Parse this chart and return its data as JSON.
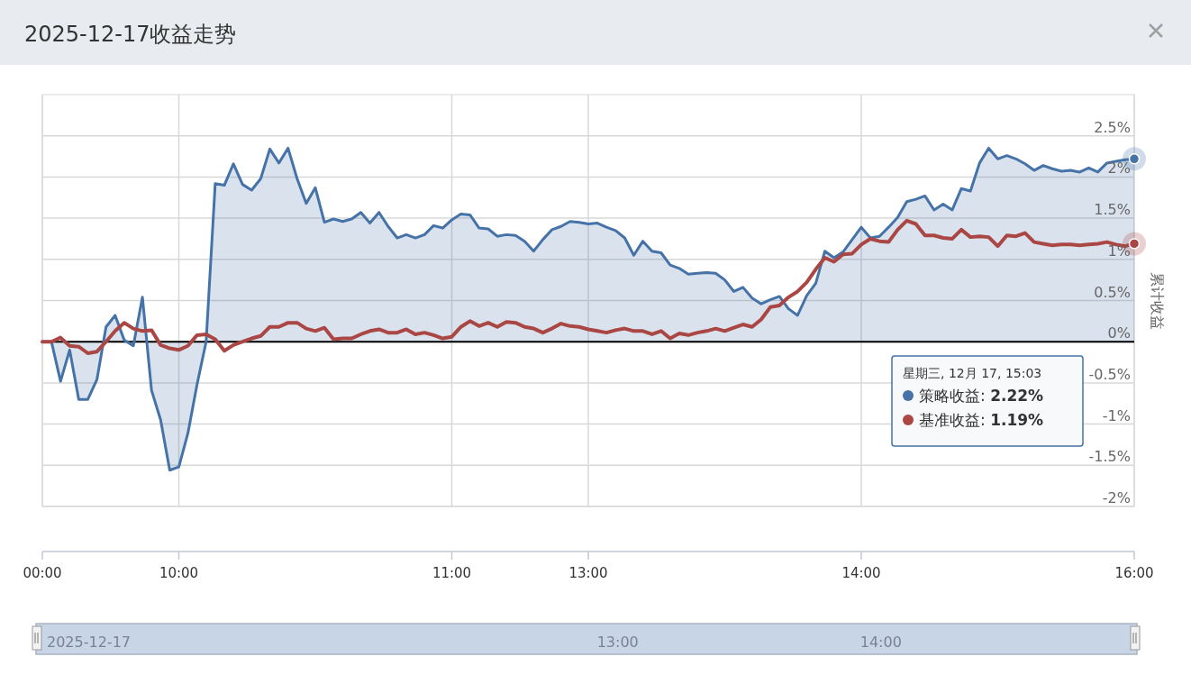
{
  "chart_data": {
    "type": "area",
    "title": "2025-12-17收益走势",
    "ylabel": "累计收益",
    "legend_title": "星期三, 12月 17, 15:03",
    "annotations": [
      ": **2.22%**",
      ": **1.19%**",
      "2025-12-17",
      "13:00",
      "14:00"
    ],
    "categories": [
      "00:00",
      null,
      null,
      null,
      null,
      null,
      null,
      null,
      null,
      null,
      null,
      null,
      null,
      null,
      null,
      "10:00",
      null,
      null,
      null,
      null,
      null,
      null,
      null,
      null,
      null,
      null,
      null,
      null,
      null,
      null,
      null,
      null,
      null,
      null,
      null,
      null,
      null,
      null,
      null,
      null,
      null,
      null,
      null,
      null,
      null,
      "11:00",
      null,
      null,
      null,
      null,
      null,
      null,
      null,
      null,
      null,
      null,
      null,
      null,
      null,
      null,
      "13:00",
      null,
      null,
      null,
      null,
      null,
      null,
      null,
      null,
      null,
      null,
      null,
      null,
      null,
      null,
      null,
      null,
      null,
      null,
      null,
      null,
      null,
      null,
      null,
      null,
      null,
      null,
      null,
      null,
      null,
      "14:00",
      null,
      null,
      null,
      null,
      null,
      null,
      null,
      null,
      null,
      null,
      null,
      null,
      null,
      null,
      null,
      null,
      null,
      null,
      null,
      null,
      null,
      null,
      null,
      null,
      null,
      null,
      null,
      null,
      null,
      "16:00"
    ],
    "ylim": [
      -2,
      3
    ],
    "yticks": [
      {
        "value": -2,
        "label": "-2%"
      },
      {
        "value": -1.5,
        "label": "-1.5%"
      },
      {
        "value": -1,
        "label": "-1%"
      },
      {
        "value": -0.5,
        "label": "-0.5%"
      },
      {
        "value": 0,
        "label": "0%"
      },
      {
        "value": 0.5,
        "label": "0.5%"
      },
      {
        "value": 1,
        "label": "1%"
      },
      {
        "value": 1.5,
        "label": "1.5%"
      },
      {
        "value": 2,
        "label": "2%"
      },
      {
        "value": 2.5,
        "label": "2.5%"
      }
    ],
    "grid": true,
    "legend": "right",
    "marker": "none",
    "line_style": "solid",
    "ref_lines": [
      {
        "axis": "y",
        "value": 0,
        "color": "#000000"
      }
    ],
    "series": [
      {
        "name": "策略收益",
        "color": "#4572a7",
        "values": [
          0,
          0,
          -0.48,
          -0.1,
          -0.7,
          -0.7,
          -0.46,
          0.18,
          0.32,
          0.02,
          -0.05,
          0.54,
          -0.59,
          -0.95,
          -1.56,
          -1.52,
          -1.11,
          -0.52,
          0,
          1.92,
          1.9,
          2.16,
          1.91,
          1.84,
          1.98,
          2.34,
          2.17,
          2.35,
          1.98,
          1.68,
          1.87,
          1.45,
          1.49,
          1.46,
          1.49,
          1.57,
          1.44,
          1.57,
          1.4,
          1.26,
          1.3,
          1.26,
          1.3,
          1.41,
          1.38,
          1.48,
          1.55,
          1.54,
          1.38,
          1.37,
          1.28,
          1.3,
          1.29,
          1.22,
          1.1,
          1.24,
          1.36,
          1.4,
          1.46,
          1.45,
          1.43,
          1.44,
          1.39,
          1.35,
          1.26,
          1.05,
          1.22,
          1.1,
          1.08,
          0.93,
          0.89,
          0.82,
          0.83,
          0.84,
          0.83,
          0.75,
          0.61,
          0.66,
          0.53,
          0.46,
          0.51,
          0.55,
          0.4,
          0.32,
          0.56,
          0.71,
          1.1,
          1.02,
          1.09,
          1.24,
          1.39,
          1.26,
          1.28,
          1.39,
          1.51,
          1.7,
          1.73,
          1.77,
          1.6,
          1.67,
          1.6,
          1.86,
          1.83,
          2.17,
          2.35,
          2.22,
          2.26,
          2.22,
          2.16,
          2.08,
          2.14,
          2.1,
          2.07,
          2.08,
          2.06,
          2.11,
          2.06,
          2.17,
          2.19,
          2.21,
          2.22
        ]
      },
      {
        "name": "基准收益",
        "type": "line",
        "color": "#aa4643",
        "values": [
          0,
          0,
          0.05,
          -0.05,
          -0.06,
          -0.14,
          -0.12,
          0,
          0.13,
          0.23,
          0.16,
          0.13,
          0.14,
          -0.04,
          -0.08,
          -0.1,
          -0.05,
          0.08,
          0.09,
          0.03,
          -0.11,
          -0.04,
          0,
          0.04,
          0.07,
          0.18,
          0.18,
          0.23,
          0.23,
          0.16,
          0.13,
          0.17,
          0.03,
          0.04,
          0.04,
          0.09,
          0.13,
          0.15,
          0.11,
          0.11,
          0.15,
          0.09,
          0.11,
          0.08,
          0.04,
          0.06,
          0.18,
          0.25,
          0.19,
          0.23,
          0.18,
          0.24,
          0.23,
          0.18,
          0.16,
          0.11,
          0.16,
          0.22,
          0.19,
          0.18,
          0.15,
          0.13,
          0.11,
          0.14,
          0.16,
          0.13,
          0.13,
          0.09,
          0.13,
          0.04,
          0.1,
          0.08,
          0.11,
          0.13,
          0.16,
          0.13,
          0.17,
          0.21,
          0.18,
          0.27,
          0.42,
          0.44,
          0.54,
          0.61,
          0.72,
          0.88,
          1.02,
          0.97,
          1.06,
          1.07,
          1.18,
          1.25,
          1.22,
          1.21,
          1.36,
          1.47,
          1.43,
          1.29,
          1.29,
          1.26,
          1.25,
          1.36,
          1.27,
          1.28,
          1.27,
          1.16,
          1.29,
          1.28,
          1.32,
          1.21,
          1.19,
          1.17,
          1.18,
          1.18,
          1.17,
          1.18,
          1.19,
          1.21,
          1.18,
          1.16,
          1.19
        ]
      }
    ]
  }
}
